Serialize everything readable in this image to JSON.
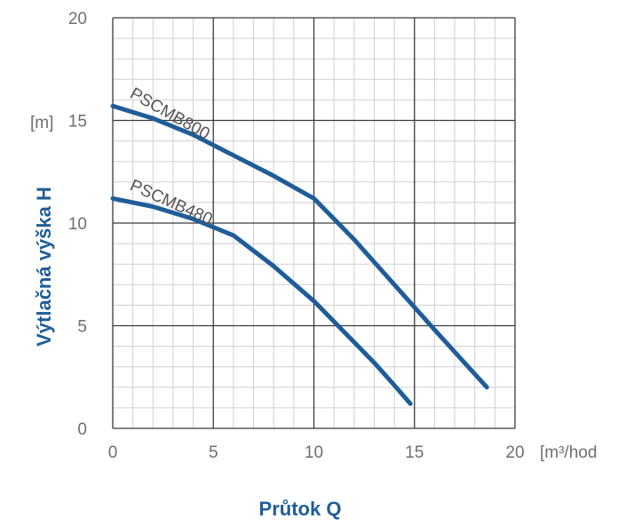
{
  "chart_data": {
    "type": "line",
    "xlabel": "Průtok Q",
    "ylabel": "Výtlačná výška H",
    "x_unit": "[m³/hod",
    "y_unit": "[m]",
    "xlim": [
      0,
      20
    ],
    "ylim": [
      0,
      20
    ],
    "x_ticks": [
      "0",
      "5",
      "10",
      "15",
      "20"
    ],
    "y_ticks": [
      "0",
      "5",
      "10",
      "15",
      "20"
    ],
    "grid": true,
    "line_color": "#1f5d99",
    "label_color": "#555555",
    "series": [
      {
        "name": "PSCMB800",
        "x": [
          0,
          2,
          4,
          6,
          8,
          10,
          12,
          14,
          16,
          18.6
        ],
        "y": [
          15.7,
          15.1,
          14.3,
          13.3,
          12.3,
          11.2,
          9.2,
          7.0,
          4.8,
          2.0
        ]
      },
      {
        "name": "PSCMB480",
        "x": [
          0,
          2,
          4,
          6,
          8,
          10,
          11,
          12,
          13,
          14,
          14.8
        ],
        "y": [
          11.2,
          10.8,
          10.2,
          9.4,
          7.9,
          6.2,
          5.2,
          4.2,
          3.2,
          2.1,
          1.2
        ]
      }
    ]
  }
}
